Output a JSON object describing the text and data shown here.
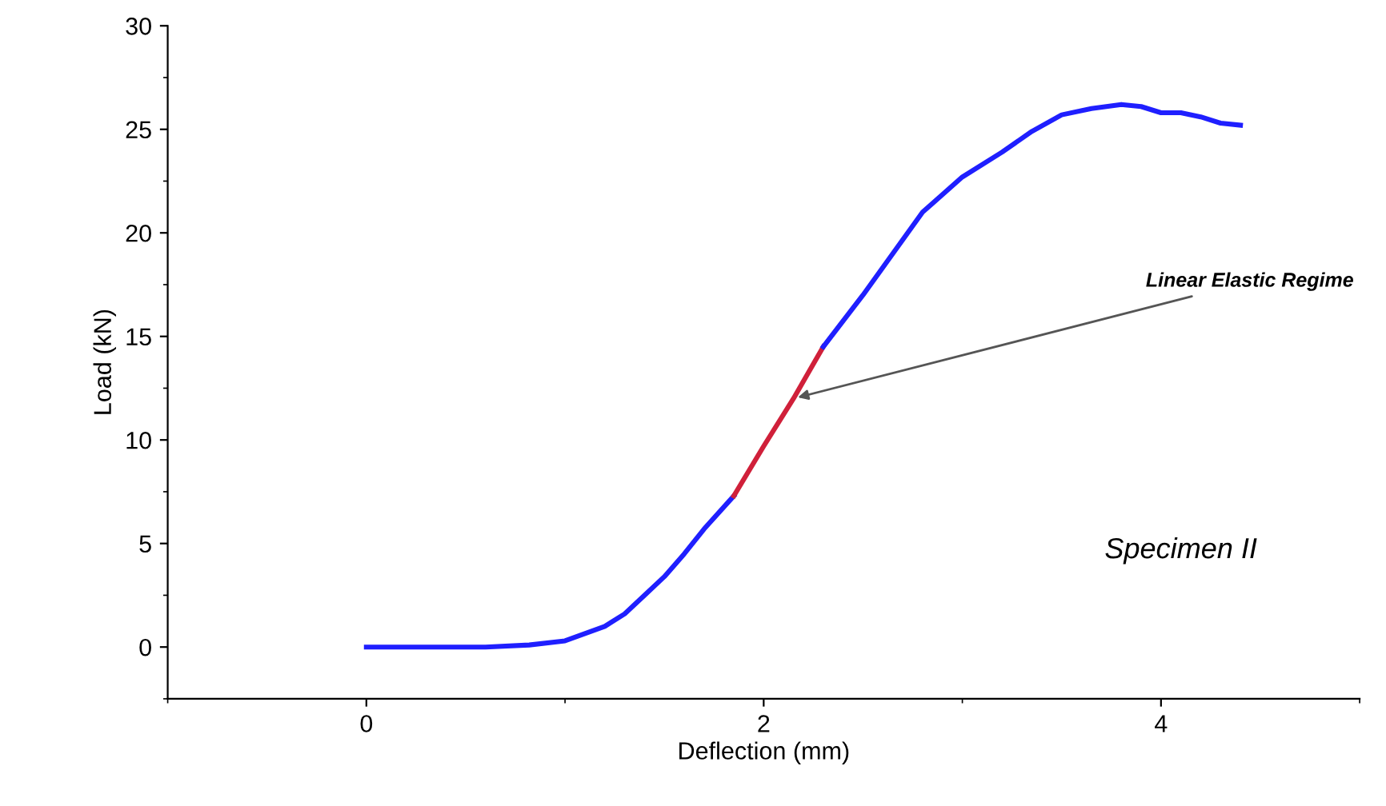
{
  "chart_data": {
    "type": "line",
    "xlabel": "Deflection (mm)",
    "ylabel": "Load (kN)",
    "series": [
      {
        "color": "#1f1fff",
        "x": [
          0,
          0.3,
          0.6,
          0.82,
          1.0,
          1.2,
          1.3,
          1.4,
          1.5,
          1.6,
          1.7,
          1.85
        ],
        "values": [
          0,
          0,
          0,
          0.1,
          0.3,
          1,
          1.6,
          2.5,
          3.4,
          4.5,
          5.7,
          7.3
        ]
      },
      {
        "color": "#d0203a",
        "x": [
          1.85,
          2.0,
          2.15,
          2.3
        ],
        "values": [
          7.3,
          9.7,
          12.0,
          14.5
        ]
      },
      {
        "color": "#1f1fff",
        "x": [
          2.3,
          2.5,
          2.8,
          3.0,
          3.2,
          3.35,
          3.5,
          3.65,
          3.8,
          3.9,
          4.0,
          4.1,
          4.2,
          4.3,
          4.4
        ],
        "values": [
          14.5,
          17,
          21,
          22.7,
          23.9,
          24.9,
          25.7,
          26.0,
          26.2,
          26.1,
          25.8,
          25.8,
          25.6,
          25.3,
          25.2
        ]
      }
    ],
    "xlim": [
      -1,
      5
    ],
    "xticks": [
      0,
      2,
      4
    ],
    "ylim": [
      -2.5,
      30
    ],
    "yticks": [
      0,
      5,
      10,
      15,
      20,
      25,
      30
    ],
    "grid": false,
    "legend": false,
    "marker": "none",
    "line_style": "solid",
    "annotations": [
      {
        "text": "Linear Elastic Regime",
        "x": 2.15,
        "y": 12.0
      },
      "Specimen II"
    ]
  }
}
